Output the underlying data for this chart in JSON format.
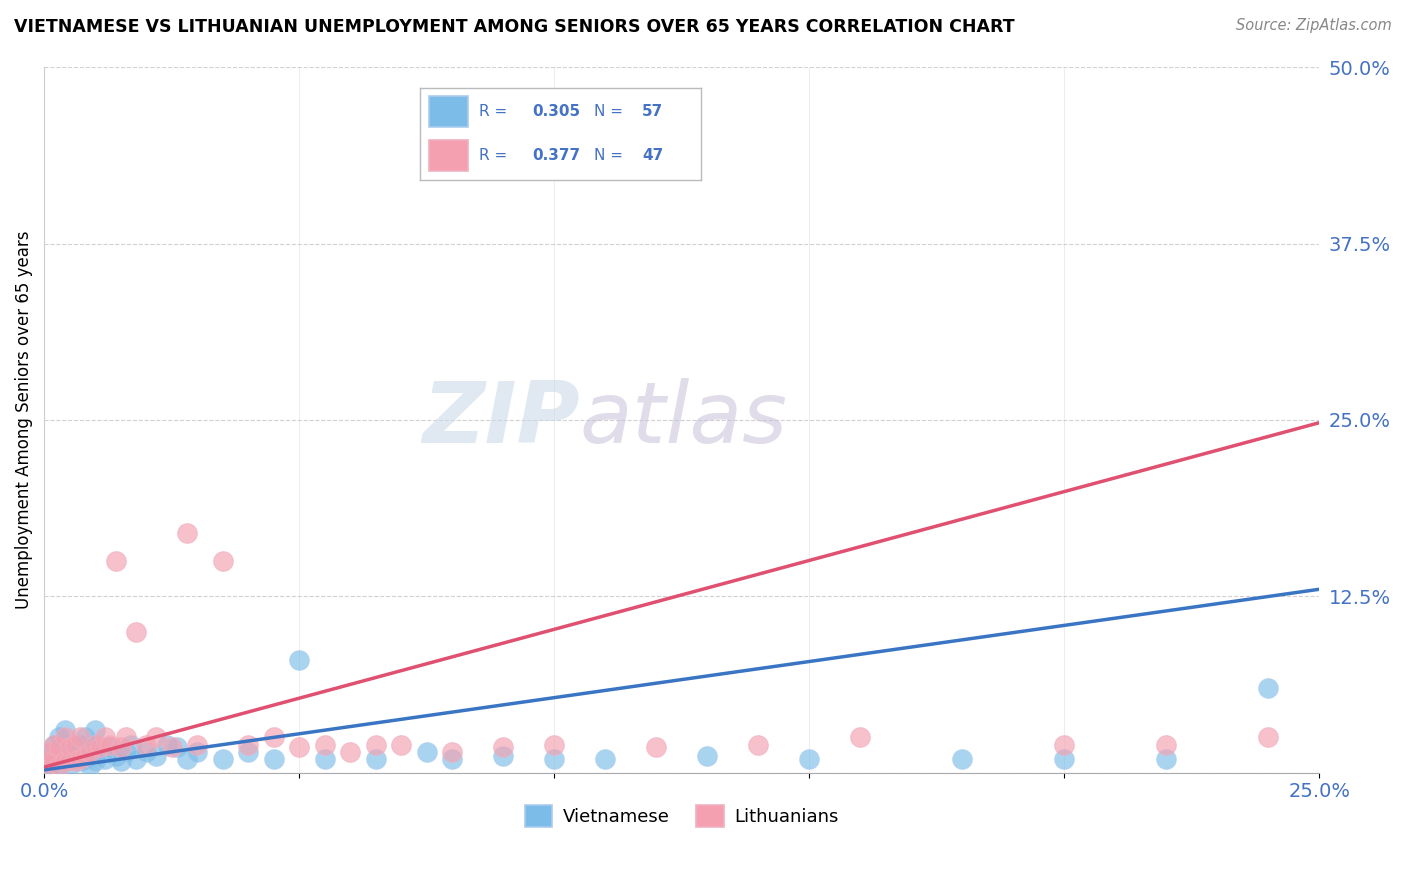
{
  "title": "VIETNAMESE VS LITHUANIAN UNEMPLOYMENT AMONG SENIORS OVER 65 YEARS CORRELATION CHART",
  "source": "Source: ZipAtlas.com",
  "ylabel_label": "Unemployment Among Seniors over 65 years",
  "legend_vietnamese": "Vietnamese",
  "legend_lithuanians": "Lithuanians",
  "R_vietnamese": 0.305,
  "N_vietnamese": 57,
  "R_lithuanians": 0.377,
  "N_lithuanians": 47,
  "color_vietnamese": "#7bbde8",
  "color_lithuanian": "#f4a0b0",
  "color_trendline_vietnamese": "#3a75c4",
  "color_trendline_lithuanian": "#e05070",
  "color_axis_labels": "#4472c4",
  "xlim": [
    0.0,
    0.25
  ],
  "ylim": [
    0.0,
    0.5
  ],
  "viet_trend_start": 0.002,
  "viet_trend_end": 0.13,
  "lith_trend_start": 0.004,
  "lith_trend_end": 0.248,
  "vietnamese_x": [
    0.0005,
    0.001,
    0.001,
    0.0015,
    0.0015,
    0.002,
    0.002,
    0.0025,
    0.003,
    0.003,
    0.003,
    0.004,
    0.004,
    0.004,
    0.005,
    0.005,
    0.006,
    0.006,
    0.007,
    0.007,
    0.008,
    0.008,
    0.009,
    0.009,
    0.01,
    0.01,
    0.011,
    0.012,
    0.013,
    0.014,
    0.015,
    0.016,
    0.017,
    0.018,
    0.02,
    0.022,
    0.024,
    0.026,
    0.028,
    0.03,
    0.035,
    0.04,
    0.045,
    0.05,
    0.055,
    0.065,
    0.075,
    0.08,
    0.09,
    0.1,
    0.11,
    0.13,
    0.15,
    0.18,
    0.2,
    0.22,
    0.24
  ],
  "vietnamese_y": [
    0.002,
    0.005,
    0.01,
    0.008,
    0.015,
    0.01,
    0.02,
    0.008,
    0.005,
    0.012,
    0.025,
    0.008,
    0.015,
    0.03,
    0.005,
    0.012,
    0.01,
    0.018,
    0.008,
    0.02,
    0.01,
    0.025,
    0.005,
    0.018,
    0.008,
    0.03,
    0.015,
    0.01,
    0.018,
    0.012,
    0.008,
    0.015,
    0.02,
    0.01,
    0.015,
    0.012,
    0.02,
    0.018,
    0.01,
    0.015,
    0.01,
    0.015,
    0.01,
    0.08,
    0.01,
    0.01,
    0.015,
    0.01,
    0.012,
    0.01,
    0.01,
    0.012,
    0.01,
    0.01,
    0.01,
    0.01,
    0.06
  ],
  "lithuanian_x": [
    0.0005,
    0.001,
    0.001,
    0.002,
    0.002,
    0.003,
    0.003,
    0.004,
    0.004,
    0.005,
    0.005,
    0.006,
    0.006,
    0.007,
    0.007,
    0.008,
    0.009,
    0.01,
    0.011,
    0.012,
    0.013,
    0.014,
    0.015,
    0.016,
    0.018,
    0.02,
    0.022,
    0.025,
    0.028,
    0.03,
    0.035,
    0.04,
    0.045,
    0.05,
    0.055,
    0.06,
    0.065,
    0.07,
    0.08,
    0.09,
    0.1,
    0.12,
    0.14,
    0.16,
    0.2,
    0.22,
    0.24
  ],
  "lithuanian_y": [
    0.005,
    0.008,
    0.015,
    0.01,
    0.02,
    0.005,
    0.018,
    0.008,
    0.025,
    0.01,
    0.018,
    0.008,
    0.02,
    0.01,
    0.025,
    0.012,
    0.015,
    0.02,
    0.018,
    0.025,
    0.02,
    0.15,
    0.018,
    0.025,
    0.1,
    0.02,
    0.025,
    0.018,
    0.17,
    0.02,
    0.15,
    0.02,
    0.025,
    0.018,
    0.02,
    0.015,
    0.02,
    0.02,
    0.015,
    0.018,
    0.02,
    0.018,
    0.02,
    0.025,
    0.02,
    0.02,
    0.025
  ]
}
